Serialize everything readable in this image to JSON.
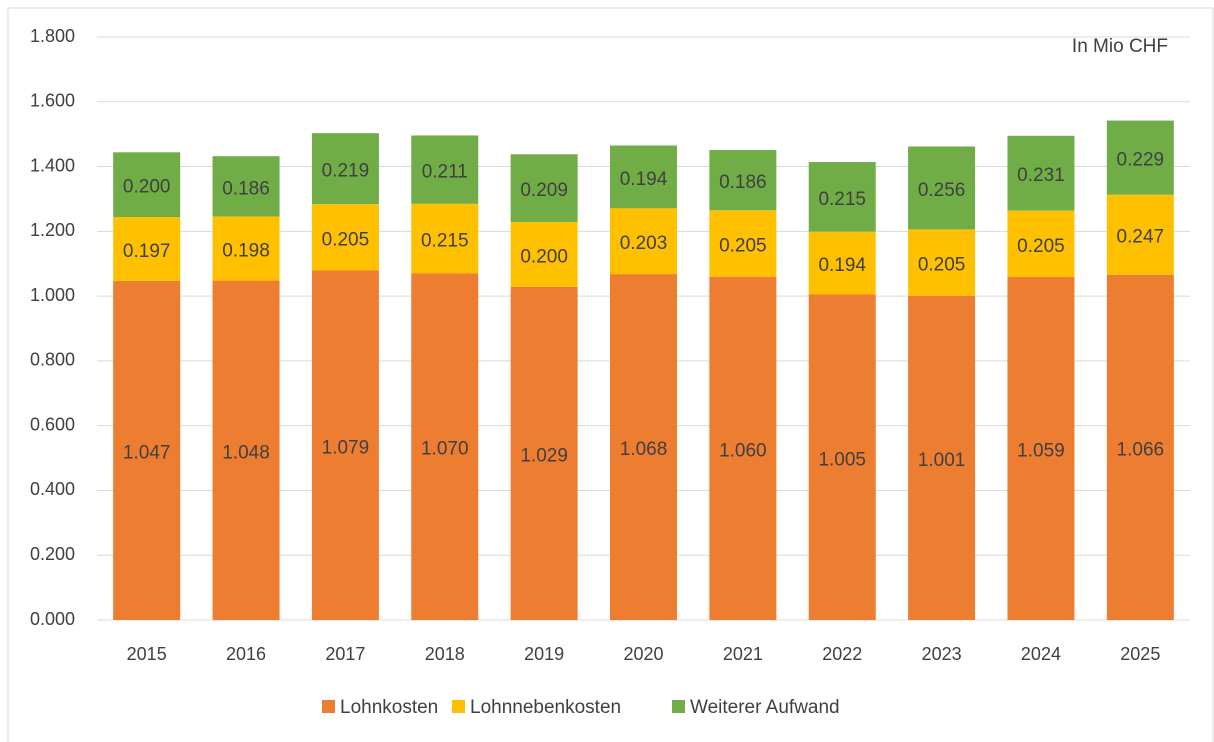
{
  "chart_data": {
    "type": "stacked_bar",
    "annotation": "In Mio CHF",
    "categories": [
      "2015",
      "2016",
      "2017",
      "2018",
      "2019",
      "2020",
      "2021",
      "2022",
      "2023",
      "2024",
      "2025"
    ],
    "series": [
      {
        "name": "Lohnkosten",
        "color": "#ed7d31",
        "values": [
          1.047,
          1.048,
          1.079,
          1.07,
          1.029,
          1.068,
          1.06,
          1.005,
          1.001,
          1.059,
          1.066
        ],
        "value_labels": [
          "1.047",
          "1.048",
          "1.079",
          "1.070",
          "1.029",
          "1.068",
          "1.060",
          "1.005",
          "1.001",
          "1.059",
          "1.066"
        ]
      },
      {
        "name": "Lohnnebenkosten",
        "color": "#ffc000",
        "values": [
          0.197,
          0.198,
          0.205,
          0.215,
          0.2,
          0.203,
          0.205,
          0.194,
          0.205,
          0.205,
          0.247
        ],
        "value_labels": [
          "0.197",
          "0.198",
          "0.205",
          "0.215",
          "0.200",
          "0.203",
          "0.205",
          "0.194",
          "0.205",
          "0.205",
          "0.247"
        ]
      },
      {
        "name": "Weiterer Aufwand",
        "color": "#70ad47",
        "values": [
          0.2,
          0.186,
          0.219,
          0.211,
          0.209,
          0.194,
          0.186,
          0.215,
          0.256,
          0.231,
          0.229
        ],
        "value_labels": [
          "0.200",
          "0.186",
          "0.219",
          "0.211",
          "0.209",
          "0.194",
          "0.186",
          "0.215",
          "0.256",
          "0.231",
          "0.229"
        ]
      }
    ],
    "ylim": [
      0,
      1.8
    ],
    "yticks": [
      {
        "value": 0,
        "label": "0.000"
      },
      {
        "value": 0.2,
        "label": "0.200"
      },
      {
        "value": 0.4,
        "label": "0.400"
      },
      {
        "value": 0.6,
        "label": "0.600"
      },
      {
        "value": 0.8,
        "label": "0.800"
      },
      {
        "value": 1.0,
        "label": "1.000"
      },
      {
        "value": 1.2,
        "label": "1.200"
      },
      {
        "value": 1.4,
        "label": "1.400"
      },
      {
        "value": 1.6,
        "label": "1.600"
      },
      {
        "value": 1.8,
        "label": "1.800"
      }
    ],
    "grid": true,
    "legend": "bottom"
  }
}
